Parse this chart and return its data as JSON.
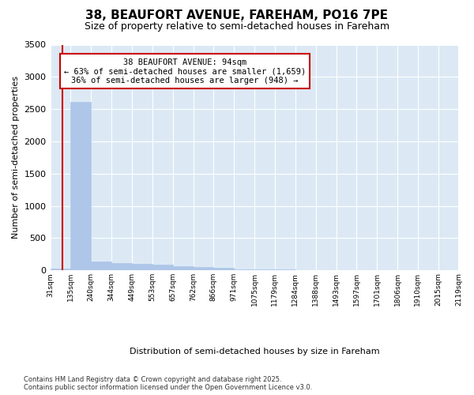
{
  "title_line1": "38, BEAUFORT AVENUE, FAREHAM, PO16 7PE",
  "title_line2": "Size of property relative to semi-detached houses in Fareham",
  "xlabel": "Distribution of semi-detached houses by size in Fareham",
  "ylabel": "Number of semi-detached properties",
  "annotation_title": "38 BEAUFORT AVENUE: 94sqm",
  "annotation_line2": "← 63% of semi-detached houses are smaller (1,659)",
  "annotation_line3": "36% of semi-detached houses are larger (948) →",
  "footer_line1": "Contains HM Land Registry data © Crown copyright and database right 2025.",
  "footer_line2": "Contains public sector information licensed under the Open Government Licence v3.0.",
  "property_size": 94,
  "ylim": [
    0,
    3500
  ],
  "bar_color": "#aec6e8",
  "grid_color": "#ffffff",
  "bg_color": "#dce9f5",
  "vline_color": "#cc0000",
  "annotation_box_color": "#cc0000",
  "bins": [
    31,
    135,
    240,
    344,
    449,
    553,
    657,
    762,
    866,
    971,
    1075,
    1179,
    1284,
    1388,
    1493,
    1597,
    1701,
    1806,
    1910,
    2015,
    2119
  ],
  "counts": [
    30,
    2607,
    140,
    120,
    105,
    85,
    65,
    50,
    35,
    22,
    18,
    12,
    10,
    8,
    6,
    5,
    4,
    3,
    2,
    2,
    1
  ]
}
